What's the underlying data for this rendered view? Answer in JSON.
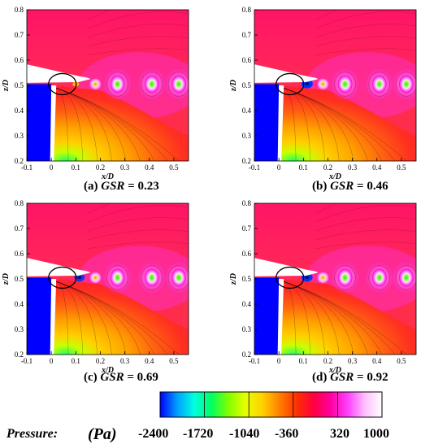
{
  "figure": {
    "panels": [
      {
        "id": "a",
        "caption_prefix": "(a) ",
        "caption_var": "GSR",
        "caption_eq": " = 0.23",
        "blob_intensity": 0.0
      },
      {
        "id": "b",
        "caption_prefix": "(b) ",
        "caption_var": "GSR",
        "caption_eq": " = 0.46",
        "blob_intensity": 1.0
      },
      {
        "id": "c",
        "caption_prefix": "(c) ",
        "caption_var": "GSR",
        "caption_eq": " = 0.69",
        "blob_intensity": 0.7
      },
      {
        "id": "d",
        "caption_prefix": "(d) ",
        "caption_var": "GSR",
        "caption_eq": " = 0.92",
        "blob_intensity": 0.9
      }
    ],
    "x_axis_label": "x/D",
    "y_axis_label": "z/D",
    "x_ticks": [
      "-0.1",
      "0",
      "0.1",
      "0.2",
      "0.3",
      "0.4",
      "0.5"
    ],
    "y_ticks": [
      "0.2",
      "0.3",
      "0.4",
      "0.5",
      "0.6",
      "0.7",
      "0.8"
    ],
    "colorbar": {
      "label": "Pressure:",
      "unit": "(Pa)",
      "ticks": [
        "-2400",
        "-1720",
        "-1040",
        "-360",
        "320",
        "1000"
      ],
      "colors": [
        "#0000ff",
        "#00a0ff",
        "#00ffe0",
        "#00ff60",
        "#80ff00",
        "#e8ff00",
        "#ffd000",
        "#ff8000",
        "#ff3000",
        "#ff0040",
        "#ff00a0",
        "#ff40ff",
        "#ffc0ff",
        "#ffffff"
      ]
    }
  }
}
